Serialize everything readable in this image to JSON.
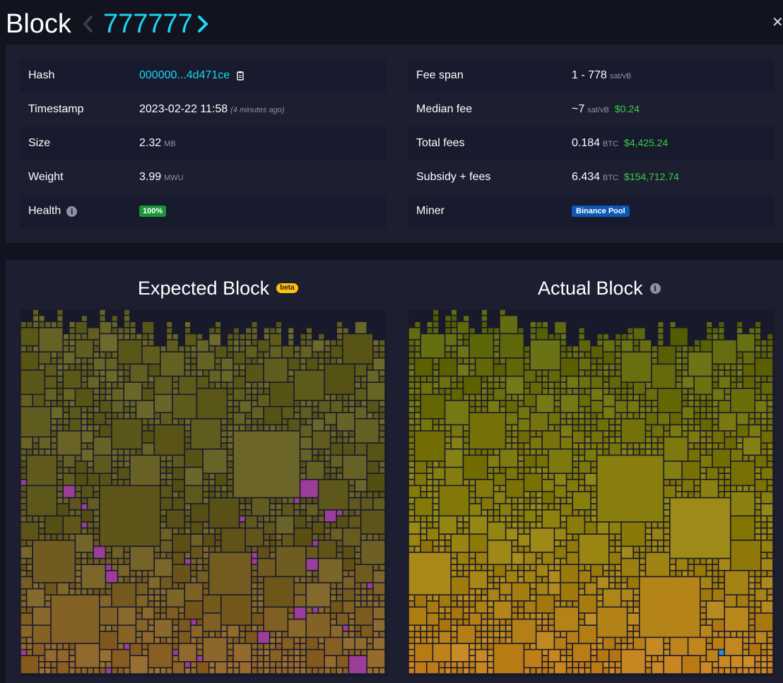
{
  "header": {
    "title": "Block",
    "block_height": "777777",
    "prev_icon": "chevron-left-icon",
    "next_icon": "chevron-right-icon",
    "close_icon": "close-icon"
  },
  "details": {
    "left": [
      {
        "label": "Hash",
        "value": "000000...4d471ce",
        "icon": "copy-icon"
      },
      {
        "label": "Timestamp",
        "value": "2023-02-22 11:58",
        "note": "(4 minutes ago)"
      },
      {
        "label": "Size",
        "value": "2.32",
        "unit": "MB"
      },
      {
        "label": "Weight",
        "value": "3.99",
        "unit": "MWU"
      },
      {
        "label": "Health",
        "value": "100%",
        "icon": "info-icon"
      }
    ],
    "right": [
      {
        "label": "Fee span",
        "value": "1 - 778",
        "unit": "sat/vB"
      },
      {
        "label": "Median fee",
        "value": "~7",
        "unit": "sat/vB",
        "fiat": "$0.24"
      },
      {
        "label": "Total fees",
        "value": "0.184",
        "unit": "BTC",
        "fiat": "$4,425.24"
      },
      {
        "label": "Subsidy + fees",
        "value": "6.434",
        "unit": "BTC",
        "fiat": "$154,712.74"
      },
      {
        "label": "Miner",
        "value": "Binance Pool"
      }
    ]
  },
  "visualization": {
    "expected_title": "Expected Block",
    "expected_badge": "beta",
    "actual_title": "Actual Block",
    "actual_icon": "info-icon"
  },
  "colors": {
    "accent": "#1bd8f4",
    "fiat_green": "#3bcc49",
    "health_badge": "#1a9436",
    "miner_badge": "#0c59b5",
    "beta_badge": "#ffc107",
    "added_tx": "#9c3d99",
    "panel_bg": "#1d1f31"
  }
}
